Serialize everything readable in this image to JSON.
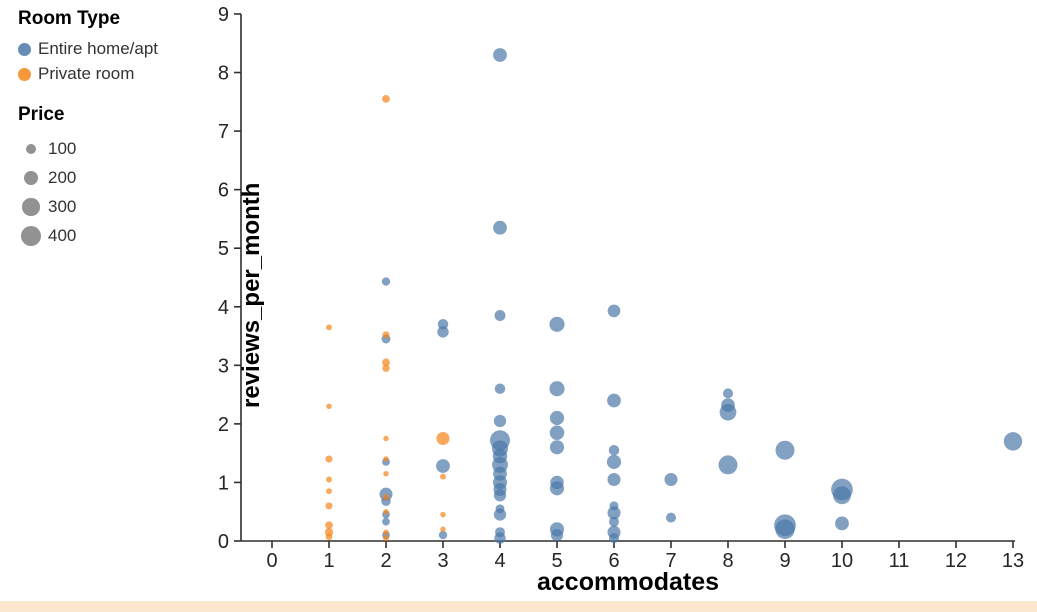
{
  "page": {
    "bottom_bar_color": "#fce6d0"
  },
  "chart_data": {
    "type": "scatter",
    "title": "",
    "xlabel": "accommodates",
    "ylabel": "reviews_per_month",
    "xlim": [
      -0.62,
      13.05
    ],
    "ylim": [
      0,
      9
    ],
    "x_ticks": [
      0,
      1,
      2,
      3,
      4,
      5,
      6,
      7,
      8,
      9,
      10,
      11,
      12,
      13
    ],
    "y_ticks": [
      0,
      1,
      2,
      3,
      4,
      5,
      6,
      7,
      8,
      9
    ],
    "grid": false,
    "point_opacity": 0.7,
    "axis_color": "#2f2f2f",
    "legend_position": "top-left",
    "legend": {
      "color": {
        "title": "Room Type",
        "items": [
          {
            "label": "Entire home/apt",
            "color": "#4c78a8"
          },
          {
            "label": "Private room",
            "color": "#f58518"
          }
        ]
      },
      "size": {
        "title": "Price",
        "items": [
          100,
          200,
          300,
          400
        ],
        "color": "#7f7f7f"
      }
    },
    "series": [
      {
        "name": "Entire home/apt",
        "color": "#4c78a8",
        "points": [
          [
            4,
            8.3,
            190
          ],
          [
            4,
            5.35,
            190
          ],
          [
            2,
            4.43,
            70
          ],
          [
            6,
            3.93,
            160
          ],
          [
            4,
            3.85,
            120
          ],
          [
            5,
            3.7,
            230
          ],
          [
            3,
            3.7,
            110
          ],
          [
            3,
            3.57,
            130
          ],
          [
            2,
            3.45,
            80
          ],
          [
            5,
            2.6,
            230
          ],
          [
            4,
            2.6,
            110
          ],
          [
            6,
            2.4,
            190
          ],
          [
            8,
            2.52,
            100
          ],
          [
            8,
            2.32,
            190
          ],
          [
            8,
            2.2,
            280
          ],
          [
            5,
            2.1,
            200
          ],
          [
            4,
            2.05,
            150
          ],
          [
            5,
            1.85,
            210
          ],
          [
            4,
            1.72,
            400
          ],
          [
            4,
            1.58,
            260
          ],
          [
            13,
            1.7,
            340
          ],
          [
            5,
            1.6,
            200
          ],
          [
            6,
            1.55,
            110
          ],
          [
            9,
            1.55,
            360
          ],
          [
            6,
            1.35,
            200
          ],
          [
            8,
            1.3,
            360
          ],
          [
            3,
            1.28,
            190
          ],
          [
            4,
            1.45,
            210
          ],
          [
            4,
            1.3,
            250
          ],
          [
            4,
            1.15,
            190
          ],
          [
            2,
            1.35,
            60
          ],
          [
            7,
            1.05,
            170
          ],
          [
            5,
            1.0,
            180
          ],
          [
            6,
            1.05,
            170
          ],
          [
            4,
            1.0,
            200
          ],
          [
            4,
            0.88,
            170
          ],
          [
            5,
            0.9,
            200
          ],
          [
            10,
            0.88,
            470
          ],
          [
            10,
            0.78,
            320
          ],
          [
            2,
            0.8,
            170
          ],
          [
            2,
            0.68,
            90
          ],
          [
            4,
            0.78,
            150
          ],
          [
            6,
            0.6,
            80
          ],
          [
            6,
            0.48,
            170
          ],
          [
            2,
            0.45,
            60
          ],
          [
            2,
            0.33,
            60
          ],
          [
            6,
            0.33,
            100
          ],
          [
            7,
            0.4,
            100
          ],
          [
            4,
            0.55,
            80
          ],
          [
            4,
            0.45,
            150
          ],
          [
            9,
            0.27,
            470
          ],
          [
            9,
            0.2,
            380
          ],
          [
            10,
            0.3,
            190
          ],
          [
            5,
            0.2,
            200
          ],
          [
            5,
            0.1,
            150
          ],
          [
            4,
            0.15,
            100
          ],
          [
            4,
            0.05,
            130
          ],
          [
            6,
            0.15,
            170
          ],
          [
            6,
            0.05,
            100
          ],
          [
            3,
            0.1,
            70
          ],
          [
            2,
            0.1,
            60
          ]
        ]
      },
      {
        "name": "Private room",
        "color": "#f58518",
        "points": [
          [
            2,
            7.55,
            60
          ],
          [
            1,
            3.65,
            35
          ],
          [
            2,
            3.52,
            50
          ],
          [
            2,
            3.05,
            60
          ],
          [
            2,
            2.95,
            55
          ],
          [
            1,
            2.3,
            30
          ],
          [
            3,
            1.75,
            170
          ],
          [
            2,
            1.75,
            30
          ],
          [
            1,
            1.4,
            50
          ],
          [
            2,
            1.4,
            30
          ],
          [
            2,
            1.15,
            30
          ],
          [
            3,
            1.1,
            35
          ],
          [
            1,
            1.05,
            35
          ],
          [
            1,
            0.85,
            35
          ],
          [
            2,
            0.75,
            40
          ],
          [
            1,
            0.6,
            50
          ],
          [
            2,
            0.5,
            30
          ],
          [
            3,
            0.45,
            30
          ],
          [
            1,
            0.27,
            60
          ],
          [
            1,
            0.15,
            70
          ],
          [
            1,
            0.07,
            45
          ],
          [
            2,
            0.15,
            30
          ],
          [
            2,
            0.05,
            35
          ],
          [
            3,
            0.2,
            30
          ]
        ]
      }
    ]
  }
}
